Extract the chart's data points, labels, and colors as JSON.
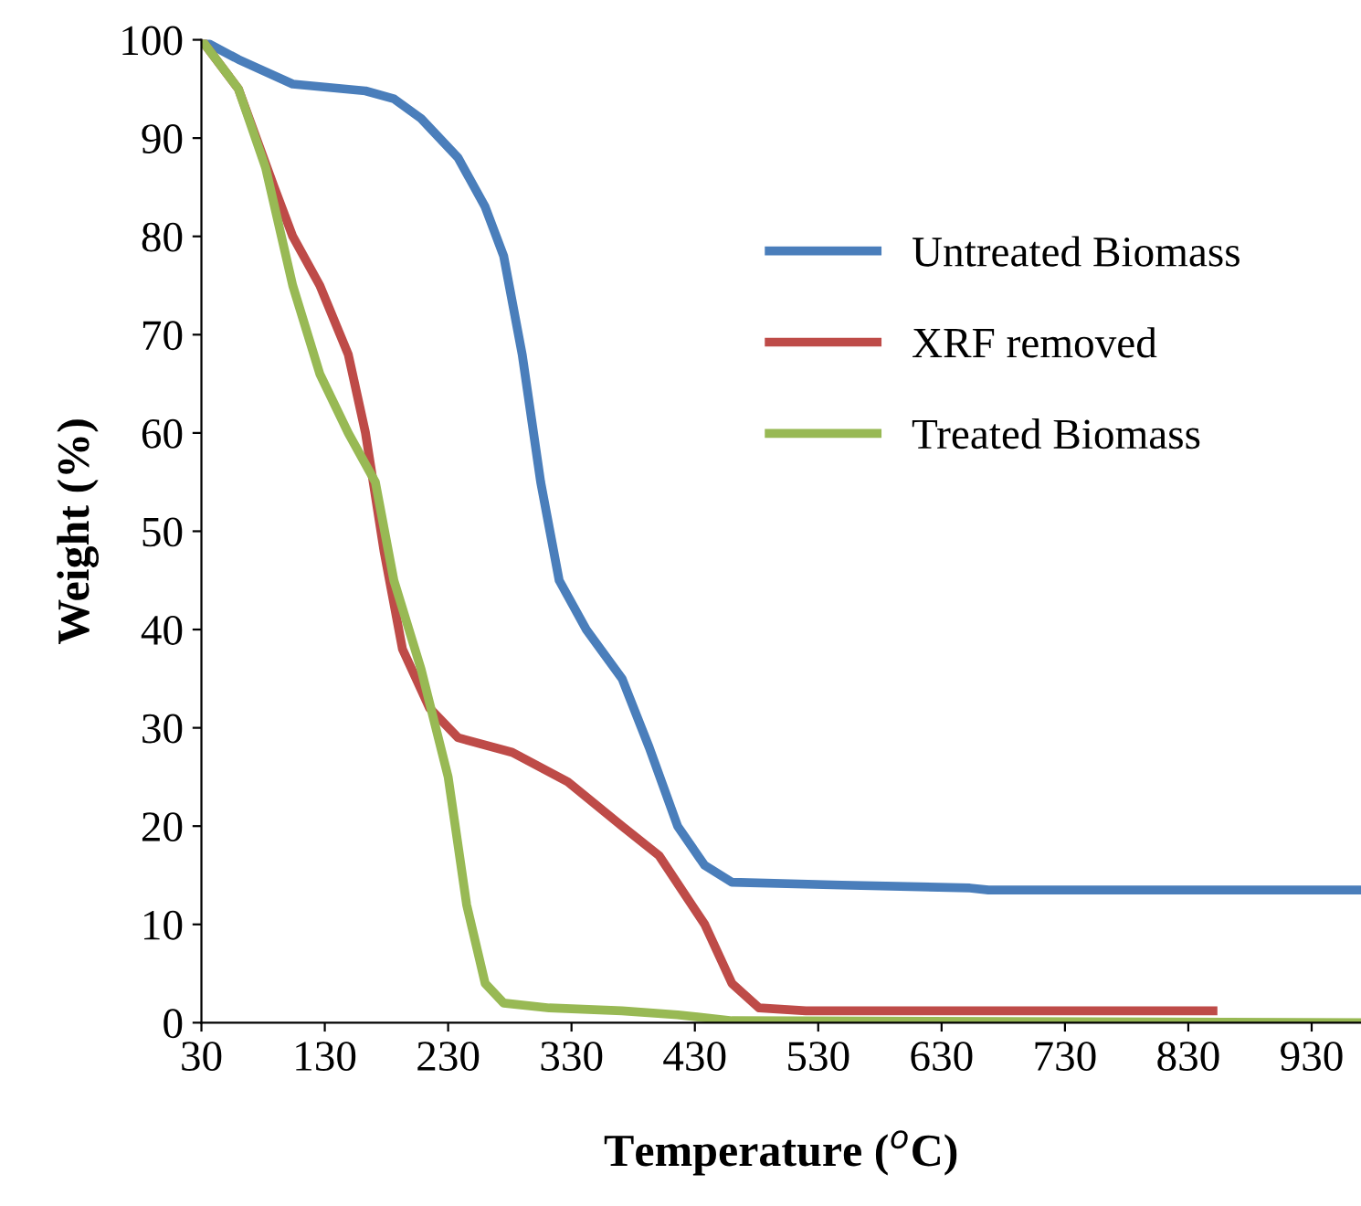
{
  "chart_data": {
    "type": "line",
    "xlabel": "Temperature ($^{o}$C)",
    "ylabel": "Weight (%)",
    "xlim": [
      30,
      970
    ],
    "ylim": [
      0,
      100
    ],
    "xticks": [
      30,
      130,
      230,
      330,
      430,
      530,
      630,
      730,
      830,
      930
    ],
    "yticks": [
      0,
      10,
      20,
      30,
      40,
      50,
      60,
      70,
      80,
      90,
      100
    ],
    "grid": false,
    "legend": "top right",
    "marker": "none",
    "line_style": "solid",
    "series": [
      {
        "name": "Untreated Biomass",
        "color": "#4a7ebb",
        "x": [
          30,
          60,
          104,
          163,
          186,
          208,
          238,
          260,
          275,
          290,
          305,
          320,
          342,
          371,
          393,
          416,
          438,
          460,
          549,
          653,
          668,
          970
        ],
        "values": [
          100,
          98,
          95.5,
          94.8,
          94,
          92,
          88,
          83,
          78,
          68,
          55,
          45,
          40,
          35,
          28,
          20,
          16,
          14.3,
          14,
          13.7,
          13.5,
          13.5
        ]
      },
      {
        "name": "XRF removed",
        "color": "#be4b48",
        "x": [
          30,
          60,
          89,
          104,
          126,
          149,
          163,
          178,
          193,
          215,
          238,
          282,
          327,
          371,
          401,
          438,
          460,
          482,
          520,
          850
        ],
        "values": [
          100,
          95,
          85,
          80,
          75,
          68,
          60,
          48,
          38,
          32,
          29,
          27.5,
          24.5,
          20,
          17,
          10,
          4,
          1.5,
          1.2,
          1.2
        ]
      },
      {
        "name": "Treated Biomass",
        "color": "#98b954",
        "x": [
          30,
          60,
          82,
          104,
          126,
          149,
          171,
          186,
          208,
          230,
          245,
          260,
          275,
          312,
          371,
          416,
          460,
          970
        ],
        "values": [
          100,
          95,
          87,
          75,
          66,
          60,
          55,
          45,
          36,
          25,
          12,
          4,
          2,
          1.5,
          1.2,
          0.8,
          0.2,
          0
        ]
      }
    ]
  }
}
